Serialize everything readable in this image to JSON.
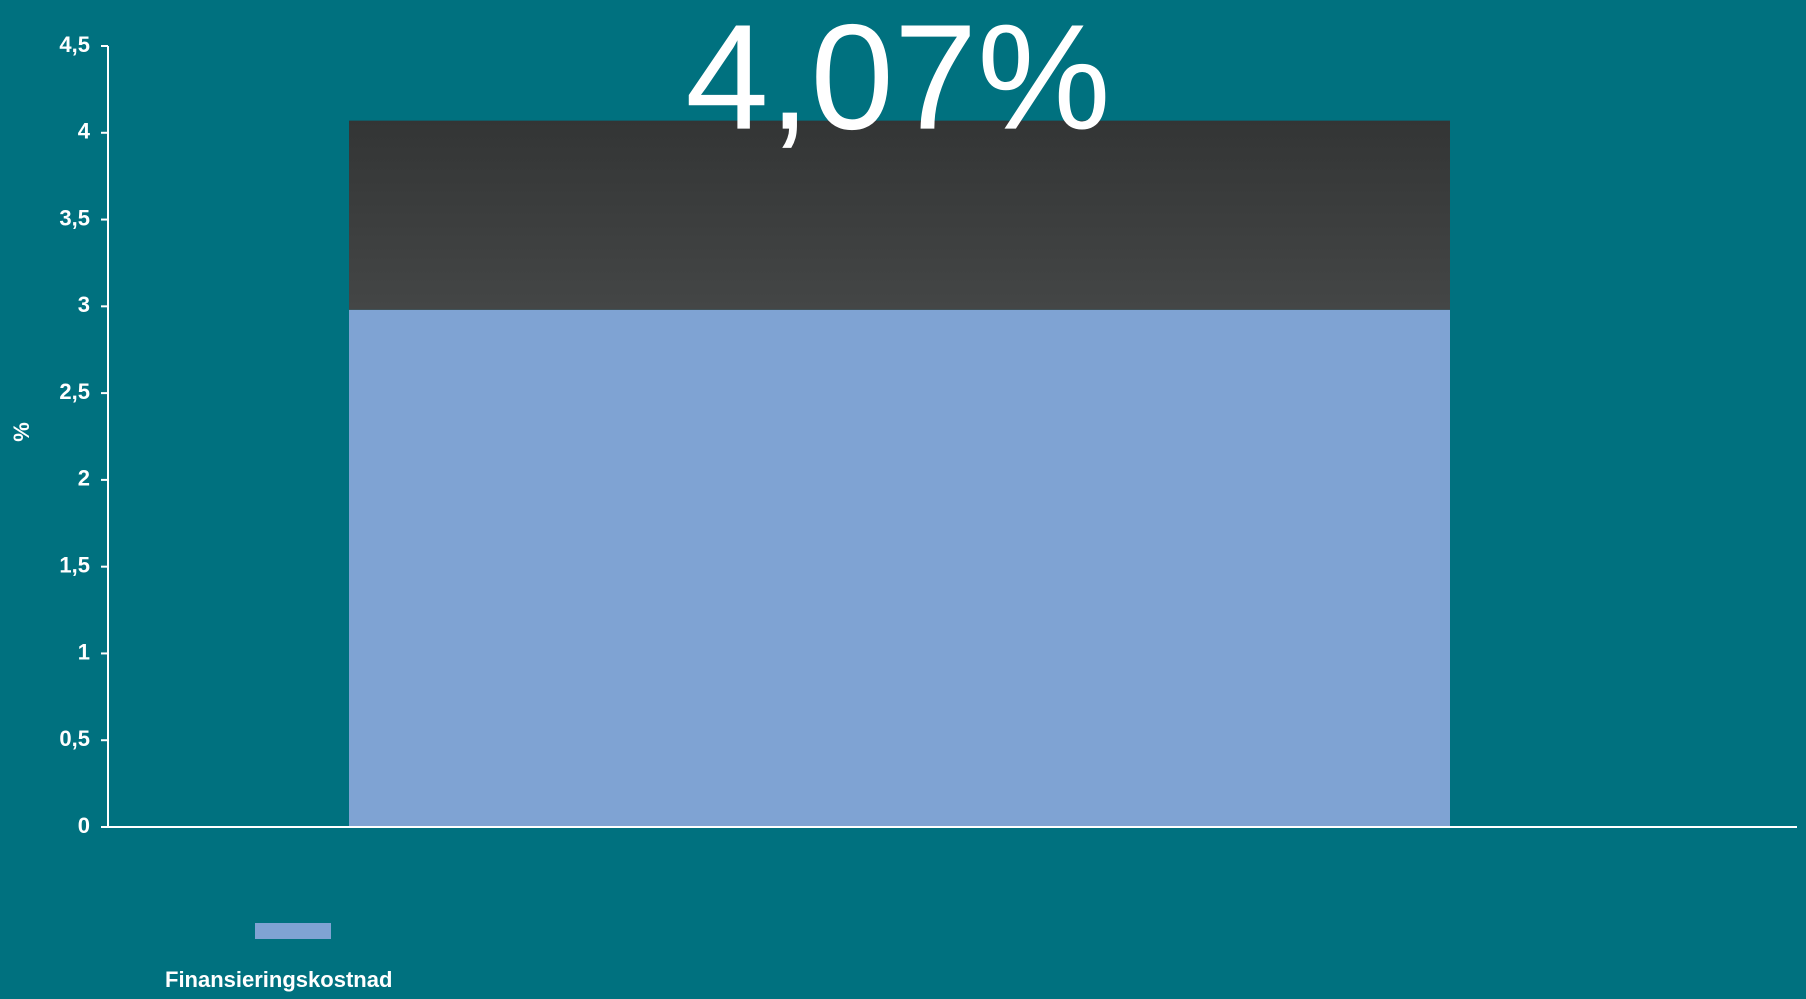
{
  "chart_data": {
    "type": "stacked-bar",
    "categories": [
      null
    ],
    "series": [
      {
        "name": "Finansieringskostnad",
        "color": "#7fa3d3",
        "values": [
          2.98
        ]
      },
      {
        "color": "#3a3c3c",
        "values": [
          1.09
        ]
      }
    ],
    "annotations": [
      {
        "text": "4,07%",
        "value": 4.07
      }
    ],
    "y_label": "%",
    "ylim": [
      0,
      4.5
    ],
    "yticks": [
      0,
      {
        "value": 0.5,
        "label": "0,5"
      },
      1,
      {
        "value": 1.5,
        "label": "1,5"
      },
      2,
      {
        "value": 2.5,
        "label": "2,5"
      },
      3,
      {
        "value": 3.5,
        "label": "3,5"
      },
      4,
      {
        "value": 4.5,
        "label": "4,5"
      }
    ],
    "legend": "bottom-left"
  }
}
